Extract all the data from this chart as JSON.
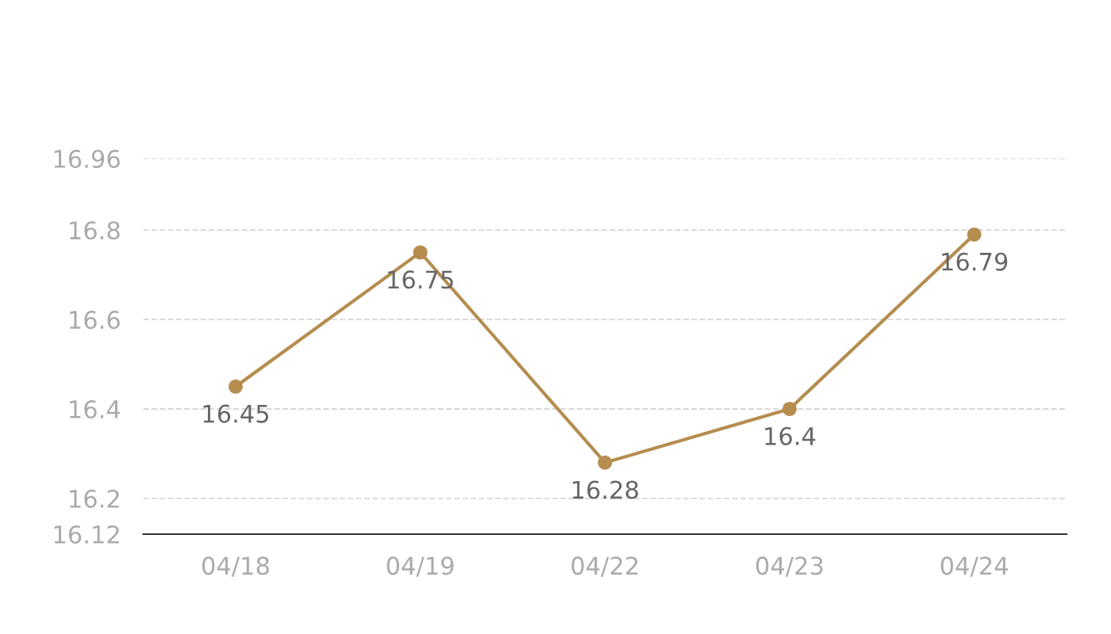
{
  "chart_data": {
    "type": "line",
    "categories": [
      "04/18",
      "04/19",
      "04/22",
      "04/23",
      "04/24"
    ],
    "series": [
      {
        "color": "#b58d4f",
        "values": [
          16.45,
          16.75,
          16.28,
          16.4,
          16.79
        ]
      }
    ],
    "ylim": [
      16.12,
      16.96
    ],
    "yticks": [
      16.12,
      16.2,
      16.4,
      16.6,
      16.8,
      16.96
    ],
    "grid": "y",
    "marker": "circle",
    "line_style": "solid",
    "data_labels": true
  }
}
